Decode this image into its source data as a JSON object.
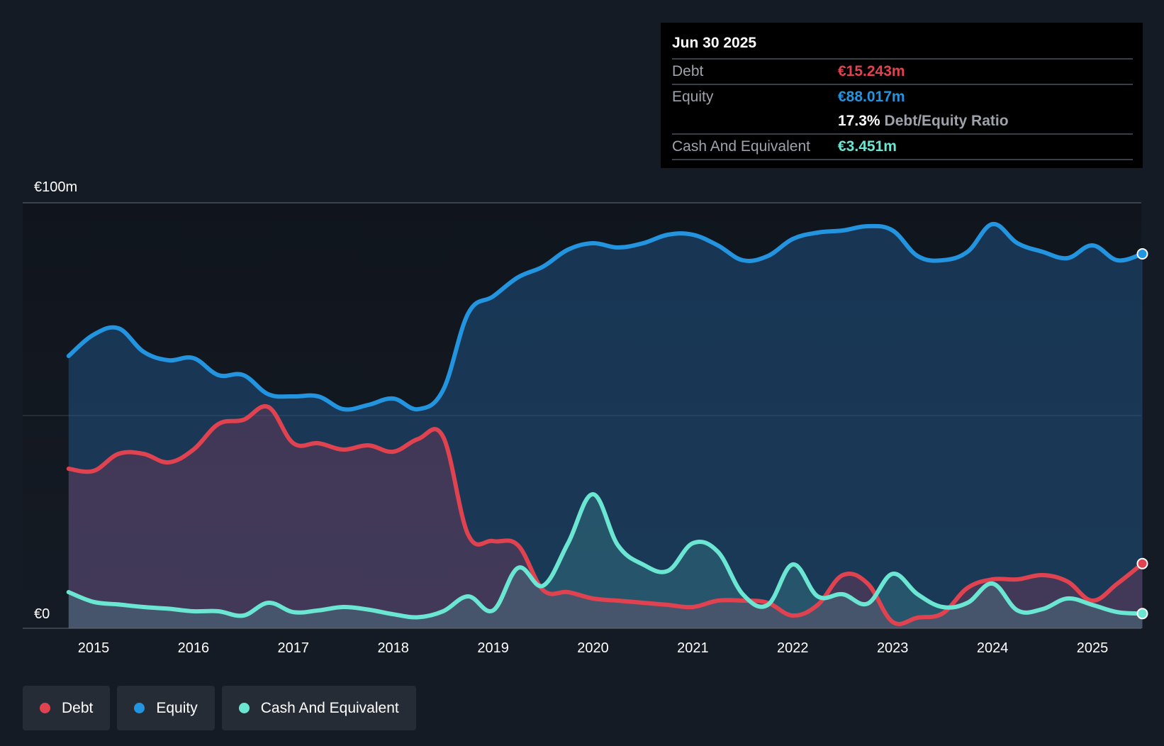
{
  "tooltip": {
    "date": "Jun 30 2025",
    "debt_label": "Debt",
    "debt_value": "€15.243m",
    "equity_label": "Equity",
    "equity_value": "€88.017m",
    "ratio_value": "17.3%",
    "ratio_label": "Debt/Equity Ratio",
    "cash_label": "Cash And Equivalent",
    "cash_value": "€3.451m"
  },
  "legend": {
    "debt": "Debt",
    "equity": "Equity",
    "cash": "Cash And Equivalent"
  },
  "colors": {
    "debt": "#e0434f",
    "equity": "#2394df",
    "cash": "#6ae6d3",
    "background": "#151b24"
  },
  "chart_data": {
    "type": "area",
    "title": "",
    "xlabel": "",
    "ylabel": "",
    "y_axis_labels": [
      "€0",
      "€100m"
    ],
    "ylim": [
      0,
      100
    ],
    "xlim": [
      2014.7,
      2025.5
    ],
    "x_ticks": [
      "2015",
      "2016",
      "2017",
      "2018",
      "2019",
      "2020",
      "2021",
      "2022",
      "2023",
      "2024",
      "2025"
    ],
    "x_tick_values": [
      2015,
      2016,
      2017,
      2018,
      2019,
      2020,
      2021,
      2022,
      2023,
      2024,
      2025
    ],
    "series": [
      {
        "name": "Equity",
        "x": [
          2014.75,
          2015.0,
          2015.25,
          2015.5,
          2015.75,
          2016.0,
          2016.25,
          2016.5,
          2016.75,
          2017.0,
          2017.25,
          2017.5,
          2017.75,
          2018.0,
          2018.25,
          2018.5,
          2018.75,
          2019.0,
          2019.25,
          2019.5,
          2019.75,
          2020.0,
          2020.25,
          2020.5,
          2020.75,
          2021.0,
          2021.25,
          2021.5,
          2021.75,
          2022.0,
          2022.25,
          2022.5,
          2022.75,
          2023.0,
          2023.25,
          2023.5,
          2023.75,
          2024.0,
          2024.25,
          2024.5,
          2024.75,
          2025.0,
          2025.25,
          2025.5
        ],
        "values": [
          64,
          69,
          70.5,
          65,
          63,
          63.5,
          59.5,
          59.5,
          55,
          54.5,
          54.5,
          51.5,
          52.5,
          54,
          51.5,
          56,
          74,
          78,
          82.5,
          85,
          89,
          90.5,
          89.5,
          90.5,
          92.5,
          92.5,
          90,
          86.5,
          87.5,
          91.5,
          93,
          93.5,
          94.5,
          93.5,
          87.5,
          86.5,
          88.5,
          95,
          90.5,
          88.5,
          87,
          90,
          86.5,
          88.0
        ]
      },
      {
        "name": "Debt",
        "x": [
          2014.75,
          2015.0,
          2015.25,
          2015.5,
          2015.75,
          2016.0,
          2016.25,
          2016.5,
          2016.75,
          2017.0,
          2017.25,
          2017.5,
          2017.75,
          2018.0,
          2018.25,
          2018.5,
          2018.75,
          2019.0,
          2019.25,
          2019.5,
          2019.75,
          2020.0,
          2020.25,
          2020.5,
          2020.75,
          2021.0,
          2021.25,
          2021.5,
          2021.75,
          2022.0,
          2022.25,
          2022.5,
          2022.75,
          2023.0,
          2023.25,
          2023.5,
          2023.75,
          2024.0,
          2024.25,
          2024.5,
          2024.75,
          2025.0,
          2025.25,
          2025.5
        ],
        "values": [
          37.5,
          37,
          41,
          41,
          39,
          42,
          48,
          49,
          52,
          43.5,
          43.5,
          42,
          43,
          41.5,
          44.5,
          45,
          22,
          20.5,
          19.5,
          9,
          8.5,
          7,
          6.5,
          6,
          5.5,
          5,
          6.5,
          6.5,
          6,
          3,
          5.5,
          12.5,
          10.5,
          1.5,
          2.5,
          3.5,
          9.5,
          11.5,
          11.5,
          12.5,
          11,
          6.5,
          10.5,
          15.2
        ]
      },
      {
        "name": "Cash And Equivalent",
        "x": [
          2014.75,
          2015.0,
          2015.25,
          2015.5,
          2015.75,
          2016.0,
          2016.25,
          2016.5,
          2016.75,
          2017.0,
          2017.25,
          2017.5,
          2017.75,
          2018.0,
          2018.25,
          2018.5,
          2018.75,
          2019.0,
          2019.25,
          2019.5,
          2019.75,
          2020.0,
          2020.25,
          2020.5,
          2020.75,
          2021.0,
          2021.25,
          2021.5,
          2021.75,
          2022.0,
          2022.25,
          2022.5,
          2022.75,
          2023.0,
          2023.25,
          2023.5,
          2023.75,
          2024.0,
          2024.25,
          2024.5,
          2024.75,
          2025.0,
          2025.25,
          2025.5
        ],
        "values": [
          8.5,
          6.2,
          5.6,
          5,
          4.6,
          4,
          4,
          3,
          6,
          3.8,
          4.2,
          5,
          4.4,
          3.3,
          2.6,
          4,
          7.5,
          4.2,
          14.2,
          10,
          20,
          31.5,
          19.5,
          15,
          13.5,
          20,
          18,
          8,
          5.5,
          15,
          7.5,
          8,
          5.8,
          12.8,
          8,
          5,
          6,
          10.5,
          4.2,
          4.5,
          7,
          5.5,
          3.8,
          3.45
        ]
      }
    ],
    "legend_position": "bottom-left",
    "grid": true
  }
}
